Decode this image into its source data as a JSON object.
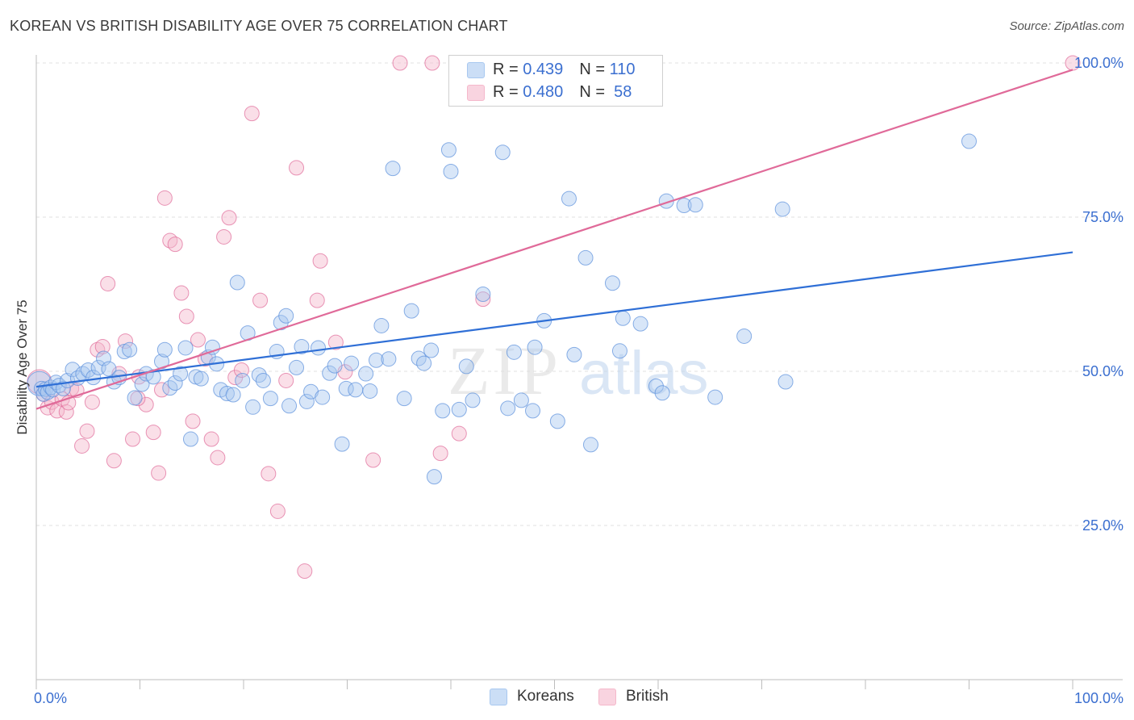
{
  "title": "KOREAN VS BRITISH DISABILITY AGE OVER 75 CORRELATION CHART",
  "source": "Source: ZipAtlas.com",
  "watermark": {
    "zip": "ZIP",
    "atlas": "atlas"
  },
  "legend_top": {
    "rows": [
      {
        "r_label": "R = ",
        "r_value": "0.439",
        "n_label": "N = ",
        "n_value": "110",
        "color": "#a8c8f0"
      },
      {
        "r_label": "R = ",
        "r_value": "0.480",
        "n_label": "N = ",
        "n_value": " 58",
        "color": "#f5b8cb"
      }
    ]
  },
  "legend_bottom": {
    "items": [
      {
        "label": "Koreans",
        "color": "#a8c8f0"
      },
      {
        "label": "British",
        "color": "#f5b8cb"
      }
    ]
  },
  "chart_data": {
    "type": "scatter",
    "title": "KOREAN VS BRITISH DISABILITY AGE OVER 75 CORRELATION CHART",
    "xlabel": "",
    "ylabel": "Disability Age Over 75",
    "xlim": [
      0,
      100
    ],
    "ylim": [
      0,
      100
    ],
    "x_tick_labels": [
      "0.0%",
      "100.0%"
    ],
    "y_tick_labels": [
      "25.0%",
      "50.0%",
      "75.0%",
      "100.0%"
    ],
    "y_ticks": [
      25,
      50,
      75,
      100
    ],
    "grid": true,
    "legend_position": "bottom",
    "series": [
      {
        "name": "Koreans",
        "color": "#5a8fdc",
        "fill": "#a8c8f0",
        "trend": {
          "r": 0.439,
          "n": 110,
          "x": [
            0,
            100
          ],
          "y": [
            47.5,
            69.3
          ]
        },
        "points": [
          [
            0.3,
            48.0
          ],
          [
            0.5,
            47.2
          ],
          [
            0.7,
            46.3
          ],
          [
            0.9,
            47.1
          ],
          [
            1.1,
            46.6
          ],
          [
            1.4,
            47.4
          ],
          [
            1.6,
            47.0
          ],
          [
            1.9,
            48.2
          ],
          [
            2.2,
            47.7
          ],
          [
            2.6,
            47.2
          ],
          [
            3.0,
            48.5
          ],
          [
            3.5,
            50.3
          ],
          [
            4.0,
            48.9
          ],
          [
            4.5,
            49.6
          ],
          [
            5.0,
            50.2
          ],
          [
            5.5,
            49.0
          ],
          [
            6.0,
            50.6
          ],
          [
            6.5,
            52.1
          ],
          [
            7.0,
            50.4
          ],
          [
            7.5,
            48.3
          ],
          [
            8.0,
            49.0
          ],
          [
            8.5,
            53.2
          ],
          [
            9.0,
            53.5
          ],
          [
            9.5,
            45.7
          ],
          [
            10.2,
            47.9
          ],
          [
            10.6,
            49.6
          ],
          [
            11.3,
            49.1
          ],
          [
            12.1,
            51.6
          ],
          [
            12.4,
            53.5
          ],
          [
            12.9,
            47.3
          ],
          [
            13.4,
            48.1
          ],
          [
            13.9,
            49.6
          ],
          [
            14.4,
            53.8
          ],
          [
            14.9,
            39.0
          ],
          [
            15.4,
            49.1
          ],
          [
            15.9,
            48.8
          ],
          [
            16.6,
            52.3
          ],
          [
            17.0,
            53.9
          ],
          [
            17.4,
            51.2
          ],
          [
            17.8,
            47.0
          ],
          [
            18.4,
            46.4
          ],
          [
            19.0,
            46.2
          ],
          [
            19.4,
            64.4
          ],
          [
            19.9,
            48.5
          ],
          [
            20.4,
            56.2
          ],
          [
            20.9,
            44.2
          ],
          [
            21.5,
            49.4
          ],
          [
            21.9,
            48.5
          ],
          [
            22.6,
            45.6
          ],
          [
            23.2,
            53.2
          ],
          [
            23.6,
            57.9
          ],
          [
            24.1,
            59.0
          ],
          [
            24.4,
            44.4
          ],
          [
            25.1,
            50.6
          ],
          [
            25.6,
            54.0
          ],
          [
            26.1,
            45.1
          ],
          [
            26.5,
            46.7
          ],
          [
            27.2,
            53.8
          ],
          [
            27.6,
            45.8
          ],
          [
            28.3,
            49.7
          ],
          [
            28.8,
            50.9
          ],
          [
            29.5,
            38.2
          ],
          [
            29.9,
            47.2
          ],
          [
            30.4,
            51.3
          ],
          [
            30.8,
            47.0
          ],
          [
            31.8,
            49.6
          ],
          [
            32.2,
            46.8
          ],
          [
            32.8,
            51.8
          ],
          [
            33.3,
            57.4
          ],
          [
            34.0,
            52.0
          ],
          [
            34.4,
            82.9
          ],
          [
            35.5,
            45.6
          ],
          [
            36.2,
            59.8
          ],
          [
            36.9,
            52.1
          ],
          [
            37.4,
            51.3
          ],
          [
            38.1,
            53.4
          ],
          [
            38.4,
            32.9
          ],
          [
            39.2,
            43.6
          ],
          [
            39.8,
            85.9
          ],
          [
            40.0,
            82.4
          ],
          [
            40.8,
            43.8
          ],
          [
            41.5,
            50.8
          ],
          [
            42.1,
            45.3
          ],
          [
            43.1,
            62.5
          ],
          [
            45.0,
            85.5
          ],
          [
            46.1,
            53.1
          ],
          [
            46.8,
            45.3
          ],
          [
            47.9,
            43.6
          ],
          [
            48.1,
            53.9
          ],
          [
            49.0,
            58.2
          ],
          [
            50.3,
            41.9
          ],
          [
            51.4,
            78.0
          ],
          [
            51.9,
            52.7
          ],
          [
            53.0,
            68.4
          ],
          [
            53.5,
            38.1
          ],
          [
            55.6,
            64.3
          ],
          [
            56.3,
            53.3
          ],
          [
            56.6,
            58.6
          ],
          [
            58.3,
            57.7
          ],
          [
            59.8,
            47.6
          ],
          [
            60.4,
            46.5
          ],
          [
            60.8,
            77.6
          ],
          [
            62.5,
            76.9
          ],
          [
            63.6,
            77.0
          ],
          [
            65.5,
            45.8
          ],
          [
            68.3,
            55.7
          ],
          [
            72.0,
            76.3
          ],
          [
            72.3,
            48.3
          ],
          [
            90.0,
            87.3
          ],
          [
            45.5,
            44.0
          ]
        ]
      },
      {
        "name": "British",
        "color": "#e06a99",
        "fill": "#f5b8cb",
        "trend": {
          "r": 0.48,
          "n": 58,
          "x": [
            0,
            100
          ],
          "y": [
            43.9,
            98.9
          ]
        },
        "points": [
          [
            0.3,
            48.3
          ],
          [
            0.7,
            46.3
          ],
          [
            1.1,
            44.1
          ],
          [
            1.5,
            45.0
          ],
          [
            2.0,
            43.6
          ],
          [
            2.5,
            45.5
          ],
          [
            2.9,
            43.4
          ],
          [
            3.4,
            47.2
          ],
          [
            3.9,
            46.9
          ],
          [
            4.4,
            37.9
          ],
          [
            4.9,
            40.3
          ],
          [
            5.4,
            45.0
          ],
          [
            5.9,
            53.5
          ],
          [
            6.4,
            54.0
          ],
          [
            6.9,
            64.2
          ],
          [
            7.5,
            35.5
          ],
          [
            8.0,
            49.6
          ],
          [
            8.6,
            54.9
          ],
          [
            9.3,
            39.0
          ],
          [
            9.9,
            49.1
          ],
          [
            10.6,
            44.6
          ],
          [
            11.3,
            40.1
          ],
          [
            11.8,
            33.5
          ],
          [
            12.4,
            78.1
          ],
          [
            12.9,
            71.2
          ],
          [
            13.4,
            70.6
          ],
          [
            14.0,
            62.7
          ],
          [
            14.5,
            58.9
          ],
          [
            15.1,
            41.9
          ],
          [
            15.6,
            55.1
          ],
          [
            16.3,
            52.0
          ],
          [
            16.9,
            39.0
          ],
          [
            17.5,
            36.0
          ],
          [
            18.1,
            71.8
          ],
          [
            18.6,
            74.9
          ],
          [
            19.2,
            49.0
          ],
          [
            20.8,
            91.8
          ],
          [
            21.6,
            61.5
          ],
          [
            22.4,
            33.4
          ],
          [
            23.3,
            27.3
          ],
          [
            24.1,
            48.5
          ],
          [
            25.1,
            83.0
          ],
          [
            25.9,
            17.6
          ],
          [
            27.1,
            61.5
          ],
          [
            27.4,
            67.9
          ],
          [
            28.9,
            54.7
          ],
          [
            29.8,
            49.9
          ],
          [
            32.5,
            35.6
          ],
          [
            35.1,
            100.0
          ],
          [
            38.2,
            100.0
          ],
          [
            39.0,
            36.7
          ],
          [
            40.8,
            39.9
          ],
          [
            43.1,
            61.7
          ],
          [
            100.0,
            100.0
          ],
          [
            9.8,
            45.6
          ],
          [
            12.1,
            47.0
          ],
          [
            3.1,
            44.9
          ],
          [
            19.8,
            50.2
          ]
        ]
      }
    ]
  }
}
